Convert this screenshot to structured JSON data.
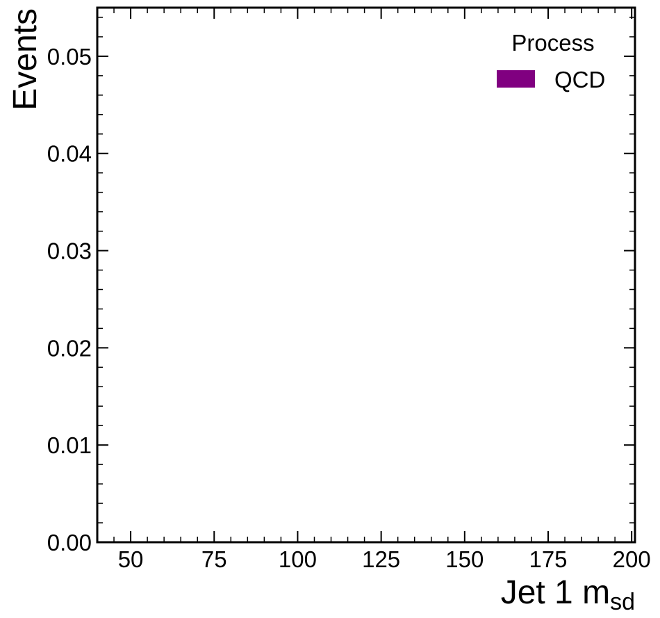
{
  "chart_data": {
    "type": "bar",
    "title": "",
    "xlabel": "Jet 1 m",
    "xlabel_subscript": "sd",
    "ylabel": "Events",
    "xlim": [
      40,
      201
    ],
    "ylim": [
      0,
      0.055
    ],
    "x_ticks": [
      50,
      75,
      100,
      125,
      150,
      175,
      200
    ],
    "x_tick_labels": [
      "50",
      "75",
      "100",
      "125",
      "150",
      "175",
      "200"
    ],
    "y_ticks": [
      0.0,
      0.01,
      0.02,
      0.03,
      0.04,
      0.05
    ],
    "y_tick_labels": [
      "0.00",
      "0.01",
      "0.02",
      "0.03",
      "0.04",
      "0.05"
    ],
    "grid": false,
    "legend": {
      "title": "Process",
      "placement": "top-right",
      "entries": [
        {
          "name": "QCD",
          "color": "#800080"
        }
      ]
    },
    "series": [
      {
        "name": "QCD",
        "color": "#800080",
        "values": []
      }
    ]
  }
}
